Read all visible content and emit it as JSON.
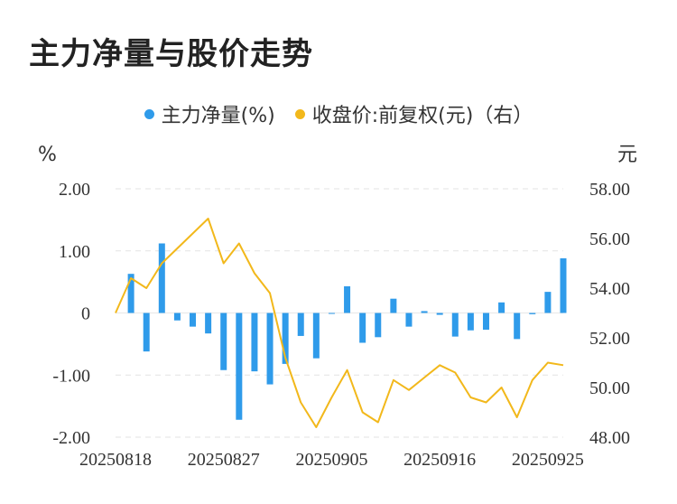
{
  "title": "主力净量与股价走势",
  "legend": {
    "left_label": "主力净量(%)",
    "right_label": "收盘价:前复权(元)（右）"
  },
  "colors": {
    "bar": "#2f9bea",
    "line": "#f2b81b",
    "grid": "#e3e3e3"
  },
  "chart_data": {
    "type": "bar",
    "title": "主力净量与股价走势",
    "left_axis_unit": "%",
    "right_axis_unit": "元",
    "left_ylim": [
      -2.0,
      2.0
    ],
    "right_ylim": [
      48.0,
      58.0
    ],
    "left_ticks": [
      "2.00",
      "1.00",
      "0",
      "-1.00",
      "-2.00"
    ],
    "right_ticks": [
      "58.00",
      "56.00",
      "54.00",
      "52.00",
      "50.00",
      "48.00"
    ],
    "x_tick_labels": [
      "20250818",
      "20250827",
      "20250905",
      "20250916",
      "20250925"
    ],
    "x_tick_indices": [
      0,
      7,
      14,
      21,
      28
    ],
    "grid": true,
    "series": [
      {
        "name": "主力净量(%)",
        "type": "bar",
        "axis": "left",
        "values": [
          0.0,
          0.63,
          -0.62,
          1.12,
          -0.12,
          -0.22,
          -0.33,
          -0.92,
          -1.72,
          -0.94,
          -1.15,
          -0.82,
          -0.37,
          -0.73,
          -0.01,
          0.43,
          -0.48,
          -0.39,
          0.23,
          -0.22,
          0.03,
          -0.03,
          -0.38,
          -0.28,
          -0.27,
          0.17,
          -0.42,
          -0.02,
          0.34,
          0.88
        ]
      },
      {
        "name": "收盘价:前复权(元)（右）",
        "type": "line",
        "axis": "right",
        "values": [
          53.0,
          54.4,
          54.0,
          55.0,
          55.6,
          56.2,
          56.8,
          55.0,
          55.8,
          54.6,
          53.8,
          51.2,
          49.4,
          48.4,
          49.6,
          50.7,
          49.0,
          48.6,
          50.3,
          49.9,
          50.4,
          50.9,
          50.6,
          49.6,
          49.4,
          50.0,
          48.8,
          50.3,
          51.0,
          50.9
        ]
      }
    ]
  }
}
